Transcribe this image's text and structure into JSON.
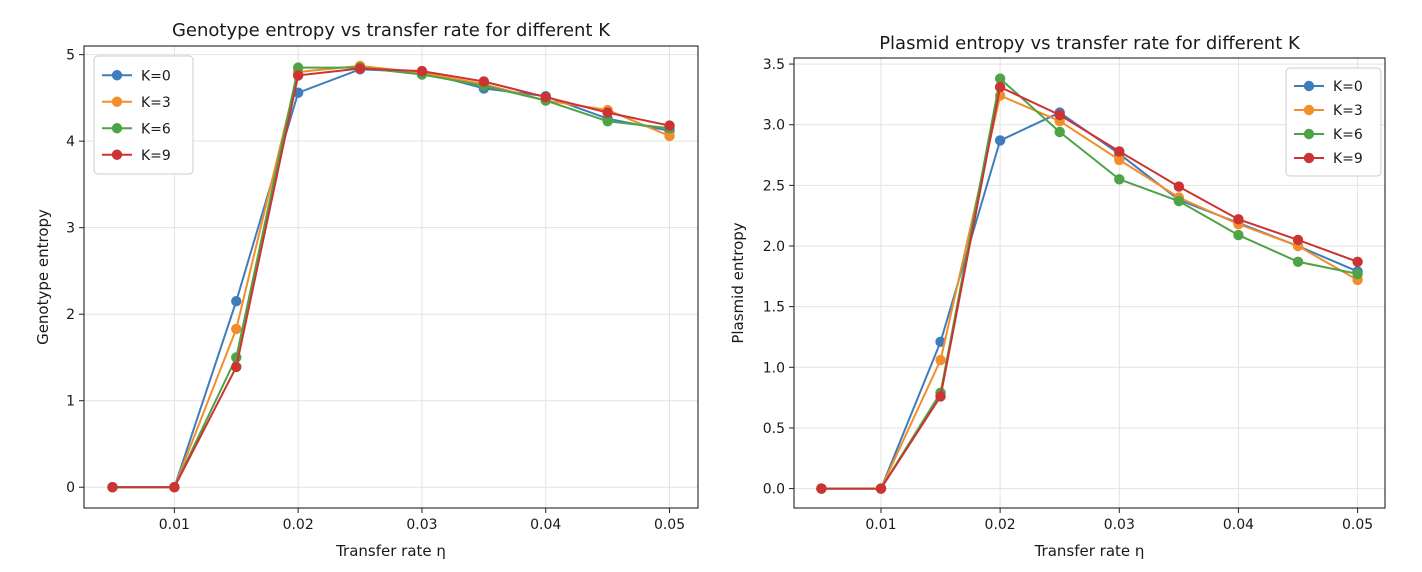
{
  "chart_data": [
    {
      "type": "line",
      "title": "Genotype entropy vs transfer rate for different K",
      "xlabel": "Transfer rate η",
      "ylabel": "Genotype entropy",
      "x": [
        0.005,
        0.01,
        0.015,
        0.02,
        0.025,
        0.03,
        0.035,
        0.04,
        0.045,
        0.05
      ],
      "xticks": [
        "0.01",
        "0.02",
        "0.03",
        "0.04",
        "0.05"
      ],
      "yticks": [
        "0",
        "1",
        "2",
        "3",
        "4",
        "5"
      ],
      "xlim": [
        0.0027,
        0.0523
      ],
      "ylim": [
        -0.24,
        5.1
      ],
      "grid": true,
      "legend": "upper-left",
      "series": [
        {
          "name": "K=0",
          "color": "#3f7cbc",
          "values": [
            0,
            0,
            2.15,
            4.56,
            4.83,
            4.8,
            4.61,
            4.52,
            4.26,
            4.12
          ]
        },
        {
          "name": "K=3",
          "color": "#f28e2b",
          "values": [
            0,
            0,
            1.83,
            4.8,
            4.87,
            4.79,
            4.66,
            4.47,
            4.36,
            4.06
          ]
        },
        {
          "name": "K=6",
          "color": "#4da345",
          "values": [
            0,
            0,
            1.5,
            4.85,
            4.85,
            4.77,
            4.64,
            4.47,
            4.23,
            4.15
          ]
        },
        {
          "name": "K=9",
          "color": "#cc3333",
          "values": [
            0,
            0,
            1.39,
            4.76,
            4.84,
            4.81,
            4.69,
            4.51,
            4.33,
            4.18
          ]
        }
      ]
    },
    {
      "type": "line",
      "title": "Plasmid entropy vs transfer rate for different K",
      "xlabel": "Transfer rate η",
      "ylabel": "Plasmid entropy",
      "x": [
        0.005,
        0.01,
        0.015,
        0.02,
        0.025,
        0.03,
        0.035,
        0.04,
        0.045,
        0.05
      ],
      "xticks": [
        "0.01",
        "0.02",
        "0.03",
        "0.04",
        "0.05"
      ],
      "yticks": [
        "0.0",
        "0.5",
        "1.0",
        "1.5",
        "2.0",
        "2.5",
        "3.0",
        "3.5"
      ],
      "xlim": [
        0.0027,
        0.0523
      ],
      "ylim": [
        -0.16,
        3.55
      ],
      "grid": true,
      "legend": "upper-right",
      "series": [
        {
          "name": "K=0",
          "color": "#3f7cbc",
          "values": [
            0,
            0,
            1.21,
            2.87,
            3.1,
            2.76,
            2.38,
            2.19,
            2.0,
            1.79
          ]
        },
        {
          "name": "K=3",
          "color": "#f28e2b",
          "values": [
            0,
            0,
            1.06,
            3.24,
            3.03,
            2.71,
            2.4,
            2.18,
            2.0,
            1.72
          ]
        },
        {
          "name": "K=6",
          "color": "#4da345",
          "values": [
            0,
            0,
            0.79,
            3.38,
            2.94,
            2.55,
            2.37,
            2.09,
            1.87,
            1.77
          ]
        },
        {
          "name": "K=9",
          "color": "#cc3333",
          "values": [
            0,
            0,
            0.76,
            3.31,
            3.08,
            2.78,
            2.49,
            2.22,
            2.05,
            1.87
          ]
        }
      ]
    }
  ]
}
